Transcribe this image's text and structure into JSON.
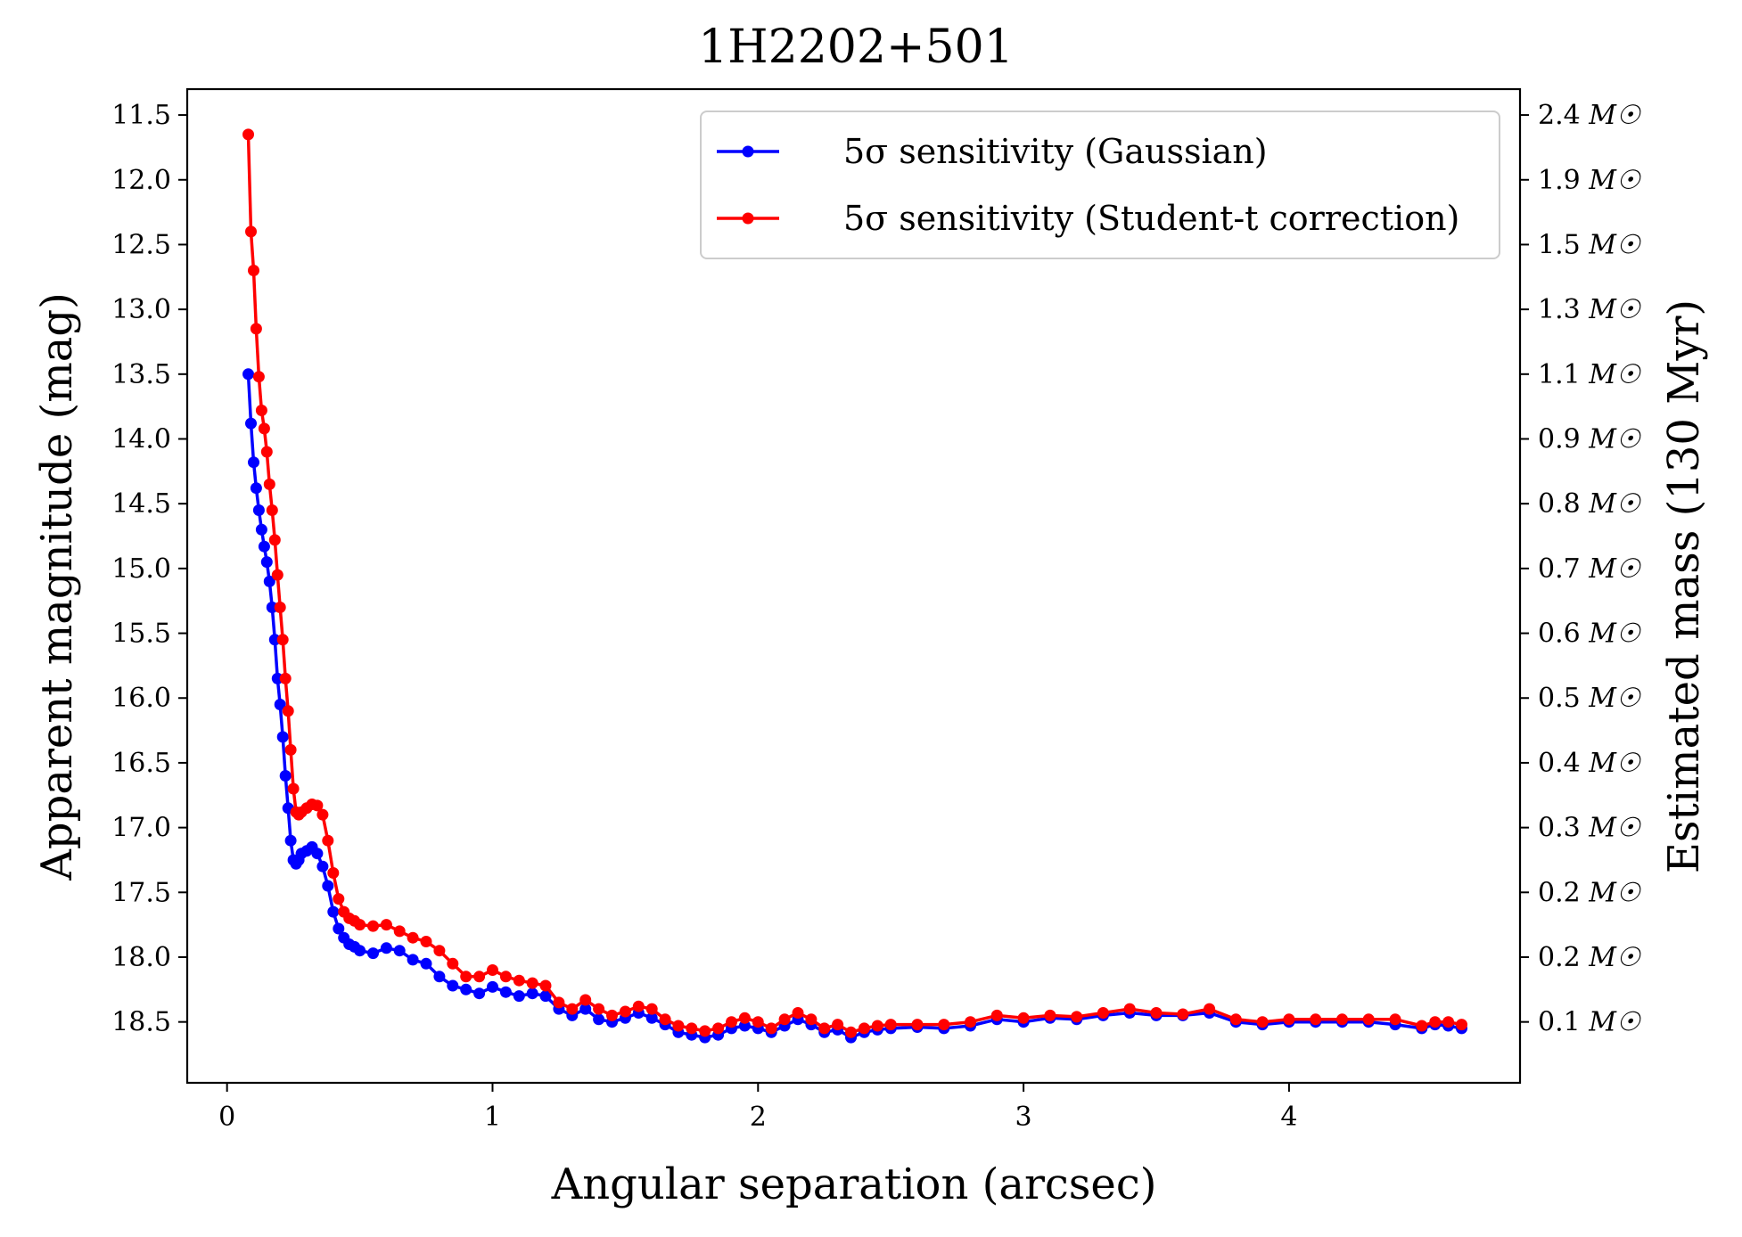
{
  "chart_data": {
    "type": "line",
    "title": "1H2202+501",
    "xlabel": "Angular separation (arcsec)",
    "ylabel": "Apparent magnitude (mag)",
    "ylabel_right": "Estimated mass (130 Myr)",
    "xlim": [
      -0.15,
      4.87
    ],
    "ylim": [
      18.97,
      11.3
    ],
    "y_inverted": true,
    "grid": false,
    "legend_position": "top-right",
    "x_ticks": [
      0,
      1,
      2,
      3,
      4
    ],
    "y_ticks": [
      11.5,
      12.0,
      12.5,
      13.0,
      13.5,
      14.0,
      14.5,
      15.0,
      15.5,
      16.0,
      16.5,
      17.0,
      17.5,
      18.0,
      18.5
    ],
    "x_tick_labels": [
      "0",
      "1",
      "2",
      "3",
      "4"
    ],
    "y_tick_labels": [
      "11.5",
      "12.0",
      "12.5",
      "13.0",
      "13.5",
      "14.0",
      "14.5",
      "15.0",
      "15.5",
      "16.0",
      "16.5",
      "17.0",
      "17.5",
      "18.0",
      "18.5"
    ],
    "right_ticks": [
      {
        "mag": 11.5,
        "value": "2.4",
        "unit": "M☉"
      },
      {
        "mag": 12.0,
        "value": "1.9",
        "unit": "M☉"
      },
      {
        "mag": 12.5,
        "value": "1.5",
        "unit": "M☉"
      },
      {
        "mag": 13.0,
        "value": "1.3",
        "unit": "M☉"
      },
      {
        "mag": 13.5,
        "value": "1.1",
        "unit": "M☉"
      },
      {
        "mag": 14.0,
        "value": "0.9",
        "unit": "M☉"
      },
      {
        "mag": 14.5,
        "value": "0.8",
        "unit": "M☉"
      },
      {
        "mag": 15.0,
        "value": "0.7",
        "unit": "M☉"
      },
      {
        "mag": 15.5,
        "value": "0.6",
        "unit": "M☉"
      },
      {
        "mag": 16.0,
        "value": "0.5",
        "unit": "M☉"
      },
      {
        "mag": 16.5,
        "value": "0.4",
        "unit": "M☉"
      },
      {
        "mag": 17.0,
        "value": "0.3",
        "unit": "M☉"
      },
      {
        "mag": 17.5,
        "value": "0.2",
        "unit": "M☉"
      },
      {
        "mag": 18.0,
        "value": "0.2",
        "unit": "M☉"
      },
      {
        "mag": 18.5,
        "value": "0.1",
        "unit": "M☉"
      }
    ],
    "series": [
      {
        "name": "5σ sensitivity (Gaussian)",
        "color": "#0000ff",
        "x": [
          0.08,
          0.09,
          0.1,
          0.11,
          0.12,
          0.13,
          0.14,
          0.15,
          0.16,
          0.17,
          0.18,
          0.19,
          0.2,
          0.21,
          0.22,
          0.23,
          0.24,
          0.25,
          0.26,
          0.27,
          0.28,
          0.3,
          0.32,
          0.34,
          0.36,
          0.38,
          0.4,
          0.42,
          0.44,
          0.46,
          0.48,
          0.5,
          0.55,
          0.6,
          0.65,
          0.7,
          0.75,
          0.8,
          0.85,
          0.9,
          0.95,
          1.0,
          1.05,
          1.1,
          1.15,
          1.2,
          1.25,
          1.3,
          1.35,
          1.4,
          1.45,
          1.5,
          1.55,
          1.6,
          1.65,
          1.7,
          1.75,
          1.8,
          1.85,
          1.9,
          1.95,
          2.0,
          2.05,
          2.1,
          2.15,
          2.2,
          2.25,
          2.3,
          2.35,
          2.4,
          2.45,
          2.5,
          2.6,
          2.7,
          2.8,
          2.9,
          3.0,
          3.1,
          3.2,
          3.3,
          3.4,
          3.5,
          3.6,
          3.7,
          3.8,
          3.9,
          4.0,
          4.1,
          4.2,
          4.3,
          4.4,
          4.5,
          4.55,
          4.6,
          4.65
        ],
        "y": [
          13.5,
          13.88,
          14.18,
          14.38,
          14.55,
          14.7,
          14.83,
          14.95,
          15.1,
          15.3,
          15.55,
          15.85,
          16.05,
          16.3,
          16.6,
          16.85,
          17.1,
          17.25,
          17.28,
          17.25,
          17.2,
          17.18,
          17.15,
          17.2,
          17.3,
          17.45,
          17.65,
          17.78,
          17.85,
          17.9,
          17.92,
          17.95,
          17.97,
          17.93,
          17.95,
          18.02,
          18.05,
          18.15,
          18.22,
          18.25,
          18.28,
          18.23,
          18.27,
          18.3,
          18.28,
          18.3,
          18.4,
          18.45,
          18.4,
          18.48,
          18.5,
          18.47,
          18.43,
          18.47,
          18.52,
          18.58,
          18.6,
          18.62,
          18.6,
          18.55,
          18.53,
          18.55,
          18.58,
          18.53,
          18.48,
          18.52,
          18.58,
          18.56,
          18.62,
          18.58,
          18.56,
          18.55,
          18.54,
          18.55,
          18.53,
          18.48,
          18.5,
          18.47,
          18.48,
          18.45,
          18.43,
          18.45,
          18.45,
          18.43,
          18.5,
          18.52,
          18.5,
          18.5,
          18.5,
          18.5,
          18.52,
          18.55,
          18.52,
          18.53,
          18.55
        ]
      },
      {
        "name": "5σ sensitivity (Student-t correction)",
        "color": "#ff0000",
        "x": [
          0.08,
          0.09,
          0.1,
          0.11,
          0.12,
          0.13,
          0.14,
          0.15,
          0.16,
          0.17,
          0.18,
          0.19,
          0.2,
          0.21,
          0.22,
          0.23,
          0.24,
          0.25,
          0.26,
          0.27,
          0.28,
          0.3,
          0.32,
          0.34,
          0.36,
          0.38,
          0.4,
          0.42,
          0.44,
          0.46,
          0.48,
          0.5,
          0.55,
          0.6,
          0.65,
          0.7,
          0.75,
          0.8,
          0.85,
          0.9,
          0.95,
          1.0,
          1.05,
          1.1,
          1.15,
          1.2,
          1.25,
          1.3,
          1.35,
          1.4,
          1.45,
          1.5,
          1.55,
          1.6,
          1.65,
          1.7,
          1.75,
          1.8,
          1.85,
          1.9,
          1.95,
          2.0,
          2.05,
          2.1,
          2.15,
          2.2,
          2.25,
          2.3,
          2.35,
          2.4,
          2.45,
          2.5,
          2.6,
          2.7,
          2.8,
          2.9,
          3.0,
          3.1,
          3.2,
          3.3,
          3.4,
          3.5,
          3.6,
          3.7,
          3.8,
          3.9,
          4.0,
          4.1,
          4.2,
          4.3,
          4.4,
          4.5,
          4.55,
          4.6,
          4.65
        ],
        "y": [
          11.65,
          12.4,
          12.7,
          13.15,
          13.52,
          13.78,
          13.92,
          14.1,
          14.35,
          14.55,
          14.78,
          15.05,
          15.3,
          15.55,
          15.85,
          16.1,
          16.4,
          16.7,
          16.88,
          16.9,
          16.88,
          16.85,
          16.82,
          16.83,
          16.9,
          17.1,
          17.35,
          17.55,
          17.65,
          17.7,
          17.72,
          17.75,
          17.76,
          17.75,
          17.8,
          17.85,
          17.88,
          17.95,
          18.05,
          18.15,
          18.15,
          18.1,
          18.15,
          18.18,
          18.2,
          18.22,
          18.35,
          18.4,
          18.33,
          18.4,
          18.45,
          18.42,
          18.38,
          18.4,
          18.48,
          18.53,
          18.55,
          18.57,
          18.55,
          18.5,
          18.47,
          18.5,
          18.55,
          18.48,
          18.43,
          18.48,
          18.55,
          18.52,
          18.58,
          18.55,
          18.53,
          18.52,
          18.52,
          18.52,
          18.5,
          18.45,
          18.47,
          18.45,
          18.46,
          18.43,
          18.4,
          18.43,
          18.44,
          18.4,
          18.48,
          18.5,
          18.48,
          18.48,
          18.48,
          18.48,
          18.48,
          18.53,
          18.5,
          18.5,
          18.52
        ]
      }
    ]
  }
}
